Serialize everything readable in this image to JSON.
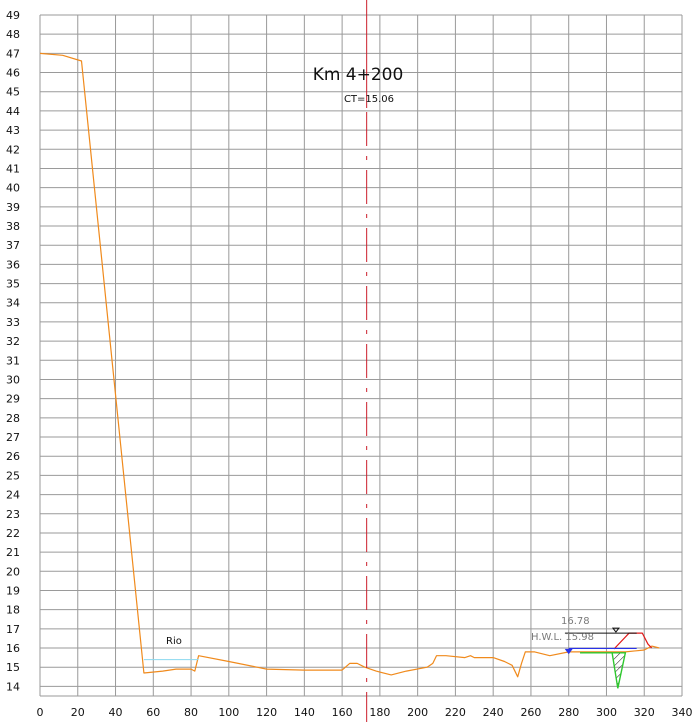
{
  "title": "Km  4+200",
  "subtitle": "CT=15.06",
  "chart_data": {
    "type": "line",
    "xlim": [
      0,
      340
    ],
    "ylim": [
      13.5,
      49
    ],
    "x_ticks": [
      0,
      20,
      40,
      60,
      80,
      100,
      120,
      140,
      160,
      180,
      200,
      220,
      240,
      260,
      280,
      300,
      320,
      340
    ],
    "y_ticks": [
      14,
      15,
      16,
      17,
      18,
      19,
      20,
      21,
      22,
      23,
      24,
      25,
      26,
      27,
      28,
      29,
      30,
      31,
      32,
      33,
      34,
      35,
      36,
      37,
      38,
      39,
      40,
      41,
      42,
      43,
      44,
      45,
      46,
      47,
      48,
      49
    ],
    "grid": true,
    "centerline_x": 173,
    "colors": {
      "terrain": "#f08a1c",
      "centerline": "#cc1f2b",
      "water": "#8ad8ef",
      "grid": "#9a9a9a",
      "design": "#e01818",
      "fill": "#2ec82e",
      "hwl": "#2a33e8"
    },
    "series": [
      {
        "kind": "terrain",
        "x": [
          0,
          12,
          22,
          55,
          65,
          72,
          80,
          82,
          84,
          100,
          120,
          140,
          160,
          164,
          168,
          172,
          178,
          186,
          194,
          205,
          208,
          210,
          215,
          225,
          228,
          230,
          240,
          246,
          250,
          253,
          255,
          257,
          262,
          270,
          280,
          290,
          300,
          310,
          320,
          324,
          328
        ],
        "y": [
          47.0,
          46.9,
          46.6,
          14.7,
          14.8,
          14.9,
          14.9,
          14.8,
          15.6,
          15.3,
          14.9,
          14.85,
          14.85,
          15.2,
          15.2,
          15.0,
          14.8,
          14.6,
          14.8,
          15.0,
          15.2,
          15.6,
          15.6,
          15.5,
          15.6,
          15.5,
          15.5,
          15.3,
          15.1,
          14.5,
          15.2,
          15.8,
          15.8,
          15.6,
          15.8,
          15.8,
          15.8,
          15.8,
          15.9,
          16.1,
          16.0
        ]
      },
      {
        "kind": "water",
        "x": [
          55,
          84
        ],
        "y": [
          15.4,
          15.4
        ]
      },
      {
        "kind": "design",
        "x": [
          304,
          312,
          316,
          319,
          322,
          324
        ],
        "y": [
          15.95,
          16.78,
          16.78,
          16.78,
          16.2,
          16.0
        ]
      }
    ],
    "annotations": {
      "river_label": "Rio",
      "level_label": "16.78",
      "hwl_label": "H.W.L.  15.98"
    }
  }
}
